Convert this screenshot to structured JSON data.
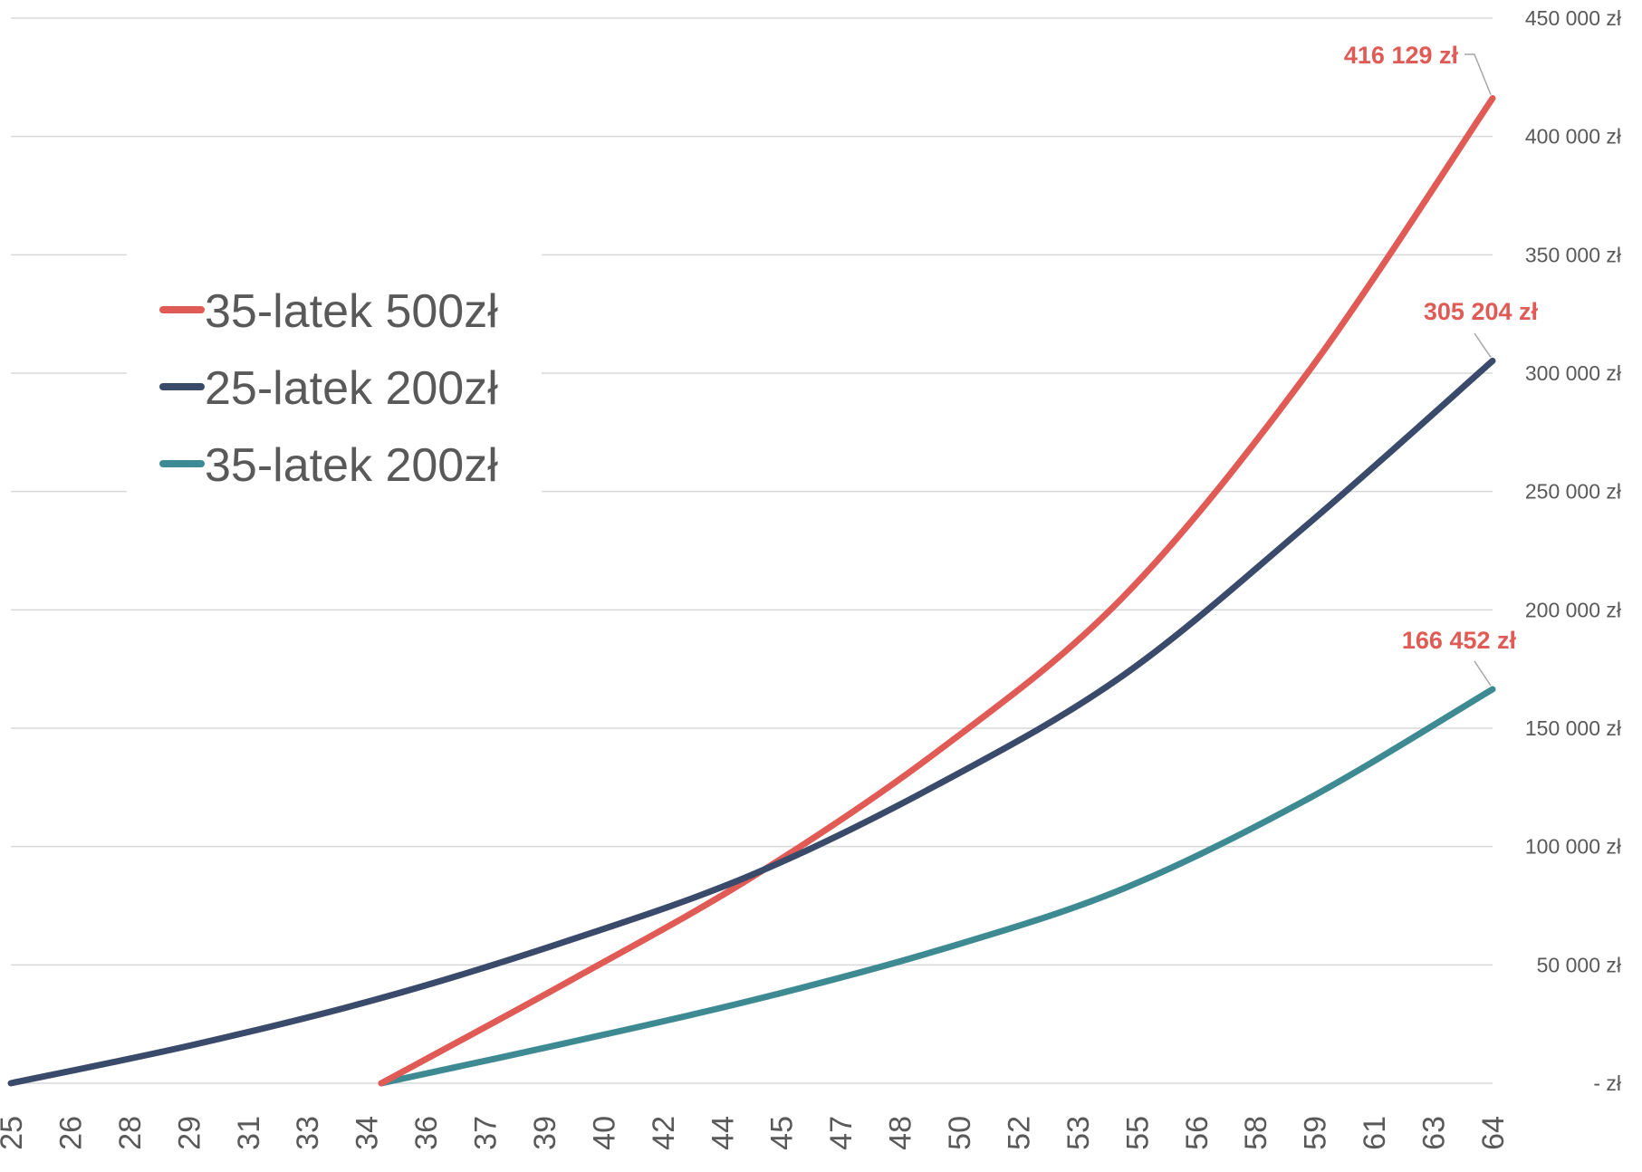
{
  "chart_data": {
    "type": "line",
    "title": "",
    "xlabel": "",
    "ylabel": "",
    "x_ticks": [
      "25",
      "26",
      "28",
      "29",
      "31",
      "33",
      "34",
      "36",
      "37",
      "39",
      "40",
      "42",
      "44",
      "45",
      "47",
      "48",
      "50",
      "52",
      "53",
      "55",
      "56",
      "58",
      "59",
      "61",
      "63",
      "64"
    ],
    "xlim": [
      25,
      65
    ],
    "ylim": [
      0,
      450000
    ],
    "y_ticks": [
      0,
      50000,
      100000,
      150000,
      200000,
      250000,
      300000,
      350000,
      400000,
      450000
    ],
    "y_tick_labels": [
      "-   zł",
      "50 000 zł",
      "100 000 zł",
      "150 000 zł",
      "200 000 zł",
      "250 000 zł",
      "300 000 zł",
      "350 000 zł",
      "400 000 zł",
      "450 000 zł"
    ],
    "grid": true,
    "y_axis_position": "right",
    "legend_position": "left",
    "series": [
      {
        "name": "35-latek 500zł",
        "color": "#e05b55",
        "x": [
          35,
          40,
          45,
          50,
          55,
          60,
          65
        ],
        "y": [
          0,
          42500,
          87000,
          140000,
          205000,
          300000,
          416129
        ],
        "end_label": "416 129 zł"
      },
      {
        "name": "25-latek 200zł",
        "color": "#3a4a6b",
        "x": [
          25,
          30,
          35,
          40,
          45,
          50,
          55,
          60,
          65
        ],
        "y": [
          0,
          16500,
          36000,
          60000,
          88000,
          126000,
          172000,
          236000,
          305204
        ],
        "end_label": "305 204 zł"
      },
      {
        "name": "35-latek 200zł",
        "color": "#3e8a93",
        "x": [
          35,
          40,
          45,
          50,
          55,
          60,
          65
        ],
        "y": [
          0,
          17000,
          35000,
          56000,
          82000,
          120000,
          166452
        ],
        "end_label": "166 452 zł"
      }
    ],
    "label_color": "#e05b55"
  }
}
